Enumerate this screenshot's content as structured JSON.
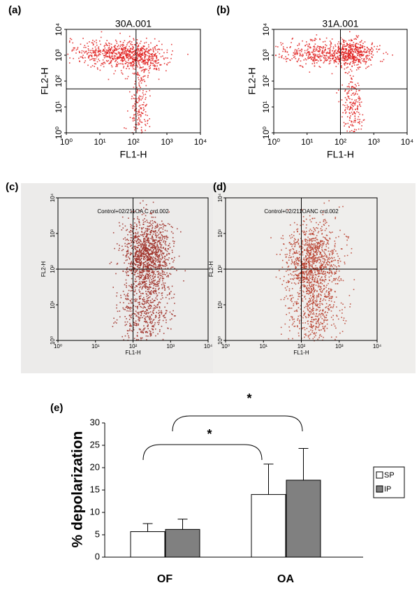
{
  "chart_data": [
    {
      "type": "scatter",
      "panel": "(a)",
      "title": "30A.001",
      "xlabel": "FL1-H",
      "ylabel": "FL2-H",
      "log": true,
      "xlim": [
        1,
        10000
      ],
      "ylim": [
        1,
        10000
      ],
      "xticks": [
        {
          "value": 1,
          "label": "10⁰"
        },
        {
          "value": 10,
          "label": "10¹"
        },
        {
          "value": 100,
          "label": "10²"
        },
        {
          "value": 1000,
          "label": "10³"
        },
        {
          "value": 10000,
          "label": "10⁴"
        }
      ],
      "yticks": [
        {
          "value": 1,
          "label": "10⁰"
        },
        {
          "value": 10,
          "label": "10¹"
        },
        {
          "value": 100,
          "label": "10²"
        },
        {
          "value": 1000,
          "label": "10³"
        },
        {
          "value": 10000,
          "label": "10⁴"
        }
      ],
      "gate": {
        "x": 120,
        "y": 50
      },
      "color": "#e0201e"
    },
    {
      "type": "scatter",
      "panel": "(b)",
      "title": "31A.001",
      "xlabel": "FL1-H",
      "ylabel": "FL2-H",
      "log": true,
      "xlim": [
        1,
        10000
      ],
      "ylim": [
        1,
        10000
      ],
      "xticks": [
        {
          "value": 1,
          "label": "10⁰"
        },
        {
          "value": 10,
          "label": "10¹"
        },
        {
          "value": 100,
          "label": "10²"
        },
        {
          "value": 1000,
          "label": "10³"
        },
        {
          "value": 10000,
          "label": "10⁴"
        }
      ],
      "yticks": [
        {
          "value": 1,
          "label": "10⁰"
        },
        {
          "value": 10,
          "label": "10¹"
        },
        {
          "value": 100,
          "label": "10²"
        },
        {
          "value": 1000,
          "label": "10³"
        },
        {
          "value": 10000,
          "label": "10⁴"
        }
      ],
      "gate": {
        "x": 100,
        "y": 50
      },
      "color": "#e0201e"
    },
    {
      "type": "scatter",
      "panel": "(c)",
      "title": "Control+02/211OA C crd.002",
      "xlabel": "FL1-H",
      "ylabel": "FL2-H",
      "log": true,
      "xlim": [
        1,
        10000
      ],
      "ylim": [
        1,
        10000
      ],
      "xticks": [
        {
          "value": 1,
          "label": "10⁰"
        },
        {
          "value": 10,
          "label": "10¹"
        },
        {
          "value": 100,
          "label": "10²"
        },
        {
          "value": 1000,
          "label": "10³"
        },
        {
          "value": 10000,
          "label": "10⁴"
        }
      ],
      "yticks": [
        {
          "value": 1,
          "label": "10⁰"
        },
        {
          "value": 10,
          "label": "10¹"
        },
        {
          "value": 100,
          "label": "10²"
        },
        {
          "value": 1000,
          "label": "10³"
        },
        {
          "value": 10000,
          "label": "10⁴"
        }
      ],
      "gate": {
        "x": 100,
        "y": 100
      },
      "color": "#9c2a22"
    },
    {
      "type": "scatter",
      "panel": "(d)",
      "title": "Control+02/211OANC crd.002",
      "xlabel": "FL1-H",
      "ylabel": "FL2-H",
      "log": true,
      "xlim": [
        1,
        10000
      ],
      "ylim": [
        1,
        10000
      ],
      "xticks": [
        {
          "value": 1,
          "label": "10⁰"
        },
        {
          "value": 10,
          "label": "10¹"
        },
        {
          "value": 100,
          "label": "10²"
        },
        {
          "value": 1000,
          "label": "10³"
        },
        {
          "value": 10000,
          "label": "10⁴"
        }
      ],
      "yticks": [
        {
          "value": 1,
          "label": "10⁰"
        },
        {
          "value": 10,
          "label": "10¹"
        },
        {
          "value": 100,
          "label": "10²"
        },
        {
          "value": 1000,
          "label": "10³"
        },
        {
          "value": 10000,
          "label": "10⁴"
        }
      ],
      "gate": {
        "x": 100,
        "y": 100
      },
      "color": "#b8402e"
    },
    {
      "type": "bar",
      "panel": "(e)",
      "ylabel": "% depolarization",
      "categories": [
        "OF",
        "OA"
      ],
      "series": [
        {
          "name": "SP",
          "color": "#ffffff",
          "values": [
            5.7,
            14
          ],
          "errors": [
            1.8,
            6.8
          ]
        },
        {
          "name": "IP",
          "color": "#808080",
          "values": [
            6.2,
            17.2
          ],
          "errors": [
            2.3,
            7.1
          ]
        }
      ],
      "ylim": [
        0,
        30
      ],
      "yticks": [
        0,
        5,
        10,
        15,
        20,
        25,
        30
      ],
      "legend": "right",
      "annotations": [
        {
          "text": "*"
        },
        {
          "text": "*"
        }
      ]
    }
  ]
}
